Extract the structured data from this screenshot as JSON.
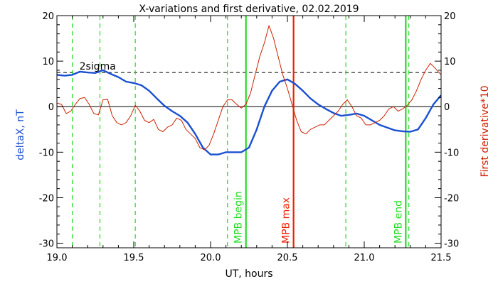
{
  "chart_data": {
    "type": "line",
    "title": "X-variations and first derivative, 02.02.2019",
    "xlabel": "UT, hours",
    "ylabel_left": "deltaX, nT",
    "ylabel_right": "First derivative*10",
    "xlim": [
      19.0,
      21.5
    ],
    "ylim": [
      -31,
      20
    ],
    "x_ticks": [
      {
        "value": 19.0,
        "label": "19.0"
      },
      {
        "value": 19.5,
        "label": "19.5"
      },
      {
        "value": 20.0,
        "label": "20.0"
      },
      {
        "value": 20.5,
        "label": "20.5"
      },
      {
        "value": 21.0,
        "label": "21.0"
      },
      {
        "value": 21.5,
        "label": "21.5"
      }
    ],
    "y_ticks": [
      {
        "value": 20,
        "label": "20"
      },
      {
        "value": 10,
        "label": "10"
      },
      {
        "value": 0,
        "label": "0"
      },
      {
        "value": -10,
        "label": "-10"
      },
      {
        "value": -20,
        "label": "-20"
      },
      {
        "value": -30,
        "label": "-30"
      }
    ],
    "threshold": {
      "label": "2sigma",
      "value": 7.5
    },
    "zero_line": 0,
    "series": [
      {
        "color": "#1a4fd1",
        "x": [
          19.0,
          19.05,
          19.1,
          19.15,
          19.2,
          19.25,
          19.3,
          19.35,
          19.4,
          19.45,
          19.5,
          19.55,
          19.6,
          19.65,
          19.7,
          19.75,
          19.8,
          19.85,
          19.9,
          19.95,
          20.0,
          20.05,
          20.1,
          20.15,
          20.2,
          20.25,
          20.3,
          20.35,
          20.4,
          20.45,
          20.5,
          20.55,
          20.6,
          20.65,
          20.7,
          20.75,
          20.8,
          20.85,
          20.9,
          20.95,
          21.0,
          21.05,
          21.1,
          21.15,
          21.2,
          21.25,
          21.3,
          21.35,
          21.4,
          21.45,
          21.5
        ],
        "values": [
          7.0,
          6.8,
          7.0,
          7.7,
          7.5,
          7.4,
          8.0,
          7.2,
          6.5,
          5.5,
          5.2,
          4.7,
          3.5,
          1.8,
          0.2,
          -1.0,
          -2.0,
          -3.5,
          -6.0,
          -9.0,
          -10.5,
          -10.5,
          -10.0,
          -10.0,
          -10.0,
          -9.0,
          -5.0,
          0.0,
          3.5,
          5.5,
          6.0,
          5.0,
          3.5,
          1.8,
          0.5,
          -0.5,
          -1.4,
          -2.0,
          -1.8,
          -1.5,
          -2.0,
          -3.0,
          -4.0,
          -4.6,
          -5.2,
          -5.4,
          -5.5,
          -5.0,
          -2.5,
          0.5,
          2.5
        ]
      },
      {
        "color": "#cc2200",
        "x": [
          19.0,
          19.03,
          19.06,
          19.09,
          19.12,
          19.15,
          19.18,
          19.21,
          19.24,
          19.27,
          19.3,
          19.33,
          19.36,
          19.39,
          19.42,
          19.45,
          19.48,
          19.51,
          19.54,
          19.57,
          19.6,
          19.63,
          19.66,
          19.69,
          19.72,
          19.75,
          19.78,
          19.81,
          19.84,
          19.87,
          19.9,
          19.93,
          19.96,
          19.99,
          20.02,
          20.05,
          20.08,
          20.11,
          20.14,
          20.17,
          20.2,
          20.23,
          20.26,
          20.29,
          20.32,
          20.35,
          20.38,
          20.41,
          20.44,
          20.47,
          20.5,
          20.53,
          20.56,
          20.59,
          20.62,
          20.65,
          20.68,
          20.71,
          20.74,
          20.77,
          20.8,
          20.83,
          20.86,
          20.89,
          20.92,
          20.95,
          20.98,
          21.01,
          21.04,
          21.07,
          21.1,
          21.13,
          21.16,
          21.19,
          21.22,
          21.25,
          21.28,
          21.31,
          21.34,
          21.37,
          21.4,
          21.43,
          21.46,
          21.5
        ],
        "values": [
          0.8,
          0.5,
          -1.5,
          -1.0,
          0.5,
          1.8,
          2.0,
          0.5,
          -1.5,
          -1.8,
          1.5,
          1.6,
          -2.0,
          -3.5,
          -4.0,
          -3.5,
          -2.0,
          0.3,
          -1.0,
          -3.0,
          -3.5,
          -2.8,
          -5.0,
          -5.5,
          -4.5,
          -4.0,
          -2.5,
          -3.0,
          -5.0,
          -6.0,
          -7.0,
          -9.0,
          -9.5,
          -8.5,
          -6.0,
          -3.0,
          0.0,
          1.5,
          1.5,
          0.5,
          -0.3,
          0.5,
          3.0,
          7.0,
          11.0,
          14.0,
          17.8,
          15.0,
          11.0,
          7.0,
          4.0,
          0.5,
          -3.0,
          -5.5,
          -6.0,
          -5.0,
          -4.5,
          -4.0,
          -4.0,
          -3.0,
          -2.0,
          -1.0,
          0.5,
          1.5,
          0.0,
          -2.0,
          -2.5,
          -4.0,
          -4.0,
          -3.5,
          -3.0,
          -2.0,
          -0.5,
          0.0,
          -1.0,
          -0.5,
          0.3,
          1.5,
          3.5,
          6.0,
          8.0,
          9.5,
          8.5,
          7.0
        ]
      }
    ],
    "vertical_markers": {
      "dashed_green": [
        19.1,
        19.28,
        19.51,
        20.11,
        20.88,
        21.29
      ],
      "lines": [
        {
          "x": 20.23,
          "color": "#22dd22",
          "label": "MPB begin"
        },
        {
          "x": 20.54,
          "color": "#ee2200",
          "label": "MPB max"
        },
        {
          "x": 21.27,
          "color": "#22dd22",
          "label": "MPB end"
        }
      ]
    }
  }
}
